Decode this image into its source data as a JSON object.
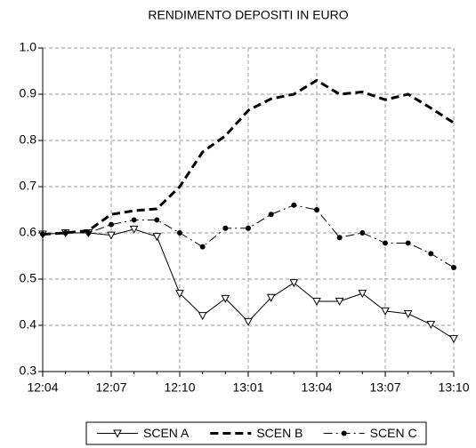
{
  "chart_data": {
    "type": "line",
    "title": "RENDIMENTO DEPOSITI IN EURO",
    "categories": [
      "12:04",
      null,
      null,
      "12:07",
      null,
      null,
      "12:10",
      null,
      null,
      "13:01",
      null,
      null,
      "13:04",
      null,
      null,
      "13:07",
      null,
      null,
      "13:10"
    ],
    "series": [
      {
        "name": "SCEN A",
        "color": "#000000",
        "dash": "solid",
        "marker": "triangle-down",
        "values": [
          0.597,
          0.6,
          0.6,
          0.595,
          0.608,
          0.592,
          0.469,
          0.421,
          0.458,
          0.408,
          0.46,
          0.492,
          0.452,
          0.452,
          0.469,
          0.431,
          0.425,
          0.402,
          0.371
        ]
      },
      {
        "name": "SCEN B",
        "color": "#000000",
        "dash": "dashed",
        "marker": "none",
        "values": [
          0.597,
          0.6,
          0.605,
          0.64,
          0.648,
          0.652,
          0.7,
          0.775,
          0.81,
          0.865,
          0.89,
          0.9,
          0.93,
          0.9,
          0.905,
          0.888,
          0.9,
          0.87,
          0.838
        ]
      },
      {
        "name": "SCEN C",
        "color": "#000000",
        "dash": "dashdot",
        "marker": "circle",
        "values": [
          0.597,
          0.6,
          0.6,
          0.618,
          0.628,
          0.628,
          0.6,
          0.57,
          0.61,
          0.61,
          0.64,
          0.66,
          0.65,
          0.59,
          0.6,
          0.578,
          0.578,
          0.555,
          0.525
        ]
      }
    ],
    "ylim": [
      0.3,
      1
    ],
    "yticks": [
      0.3,
      0.4,
      0.5,
      0.6,
      0.7,
      0.8,
      0.9,
      {
        "value": 1,
        "label": "1.0"
      }
    ],
    "grid": true,
    "legend": "bottom"
  }
}
